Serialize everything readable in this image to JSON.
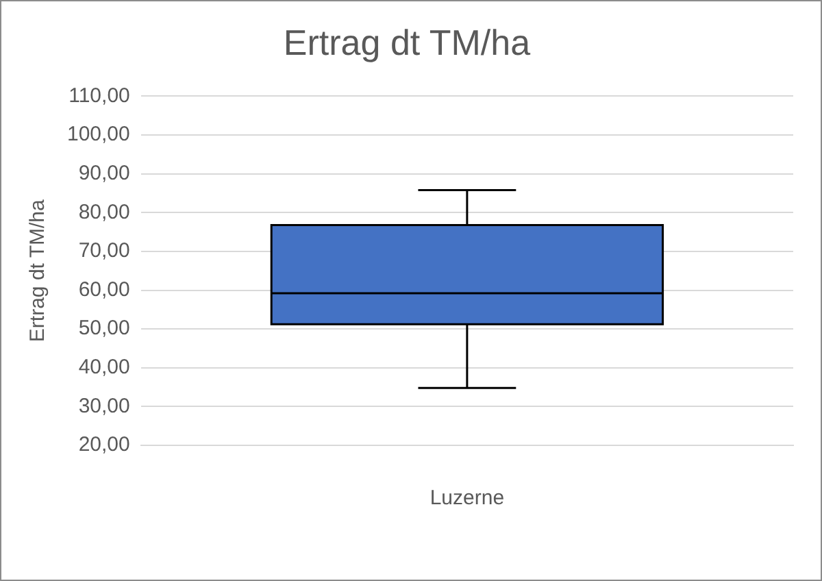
{
  "chart_data": {
    "type": "box",
    "title": "Ertrag dt TM/ha",
    "ylabel": "Ertrag dt TM/ha",
    "categories": [
      "Luzerne"
    ],
    "color": "#4472c4",
    "boxes": [
      {
        "low": 34.8,
        "q1": 51.2,
        "median": 59.2,
        "q3": 76.8,
        "high": 85.8
      }
    ],
    "ylim": [
      20,
      110
    ],
    "yticks": [
      {
        "value": 20,
        "label": "20,00"
      },
      {
        "value": 30,
        "label": "30,00"
      },
      {
        "value": 40,
        "label": "40,00"
      },
      {
        "value": 50,
        "label": "50,00"
      },
      {
        "value": 60,
        "label": "60,00"
      },
      {
        "value": 70,
        "label": "70,00"
      },
      {
        "value": 80,
        "label": "80,00"
      },
      {
        "value": 90,
        "label": "90,00"
      },
      {
        "value": 100,
        "label": "100,00"
      },
      {
        "value": 110,
        "label": "110,00"
      }
    ],
    "grid": "y",
    "legend": false
  }
}
